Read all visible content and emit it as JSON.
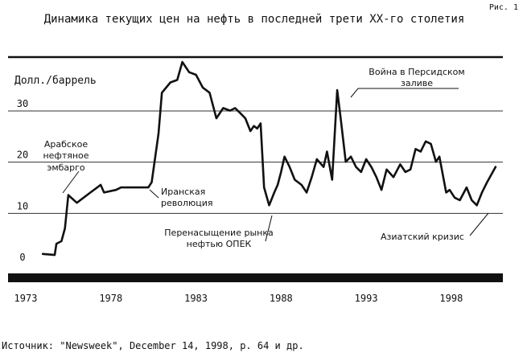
{
  "figure_label": "Рис. 1",
  "source": "Источник: \"Newsweek\", December 14, 1998, p. 64 и др.",
  "colors": {
    "line": "#111111",
    "bar": "#111111",
    "grid": "#333333"
  },
  "chart_data": {
    "type": "line",
    "title": "Динамика текущих цен на нефть в последней трети XX-го столетия",
    "ylabel": "Долл./баррель",
    "xlabel": "",
    "xlim": [
      1973,
      2000.7
    ],
    "ylim": [
      -2,
      40
    ],
    "grid": "horizontal",
    "x_ticks": [
      "1973",
      "1978",
      "1983",
      "1988",
      "1993",
      "1998"
    ],
    "y_ticks": [
      "0",
      "10",
      "20",
      "30"
    ],
    "series": [
      {
        "x": [
          1974.0,
          1974.7,
          1974.8,
          1975.1,
          1975.3,
          1975.5,
          1976.0,
          1976.8,
          1977.4,
          1977.6,
          1978.3,
          1978.6,
          1980.2,
          1980.4,
          1980.8,
          1981.0,
          1981.5,
          1981.9,
          1982.2,
          1982.6,
          1983.0,
          1983.4,
          1983.8,
          1984.2,
          1984.6,
          1985.0,
          1985.3,
          1985.6,
          1985.9,
          1986.2,
          1986.4,
          1986.6,
          1986.8,
          1987.0,
          1987.3,
          1987.6,
          1987.8,
          1988.0,
          1988.2,
          1988.5,
          1988.8,
          1989.2,
          1989.5,
          1989.8,
          1990.1,
          1990.5,
          1990.7,
          1991.0,
          1991.3,
          1991.5,
          1991.8,
          1992.1,
          1992.4,
          1992.7,
          1993.0,
          1993.3,
          1993.6,
          1993.9,
          1994.2,
          1994.6,
          1995.0,
          1995.3,
          1995.6,
          1995.9,
          1996.2,
          1996.5,
          1996.8,
          1997.1,
          1997.3,
          1997.5,
          1997.7,
          1997.9,
          1998.2,
          1998.5,
          1998.9,
          1999.2,
          1999.5,
          1999.8,
          2000.1,
          2000.6
        ],
        "y": [
          0.5,
          0.3,
          2.5,
          3.0,
          5.5,
          12.0,
          10.5,
          12.5,
          14.0,
          12.5,
          13.0,
          13.5,
          13.5,
          14.5,
          24.0,
          32.0,
          34.0,
          34.5,
          38.0,
          36.0,
          35.5,
          33.0,
          32.0,
          27.0,
          29.0,
          28.5,
          29.0,
          28.0,
          27.0,
          24.5,
          25.5,
          25.0,
          26.0,
          13.5,
          10.0,
          12.5,
          14.0,
          16.5,
          19.5,
          17.5,
          15.0,
          14.0,
          12.5,
          15.5,
          19.0,
          17.5,
          20.5,
          15.0,
          32.5,
          27.0,
          18.5,
          19.5,
          17.5,
          16.5,
          19.0,
          17.5,
          15.5,
          13.0,
          17.0,
          15.5,
          18.0,
          16.5,
          17.0,
          21.0,
          20.5,
          22.5,
          22.0,
          18.5,
          19.5,
          16.0,
          12.5,
          13.0,
          11.5,
          11.0,
          13.5,
          11.0,
          10.0,
          12.5,
          14.5,
          17.5
        ]
      }
    ],
    "annotations": [
      {
        "lines": [
          "Арабское",
          "нефтяное",
          "эмбарго"
        ]
      },
      {
        "lines": [
          "Иранская",
          "революция"
        ]
      },
      {
        "lines": [
          "Перенасыщение рынка",
          "нефтью ОПЕК"
        ]
      },
      {
        "lines": [
          "Война в Персидском",
          "заливе"
        ]
      },
      {
        "lines": [
          "Азиатский кризис"
        ]
      }
    ]
  }
}
